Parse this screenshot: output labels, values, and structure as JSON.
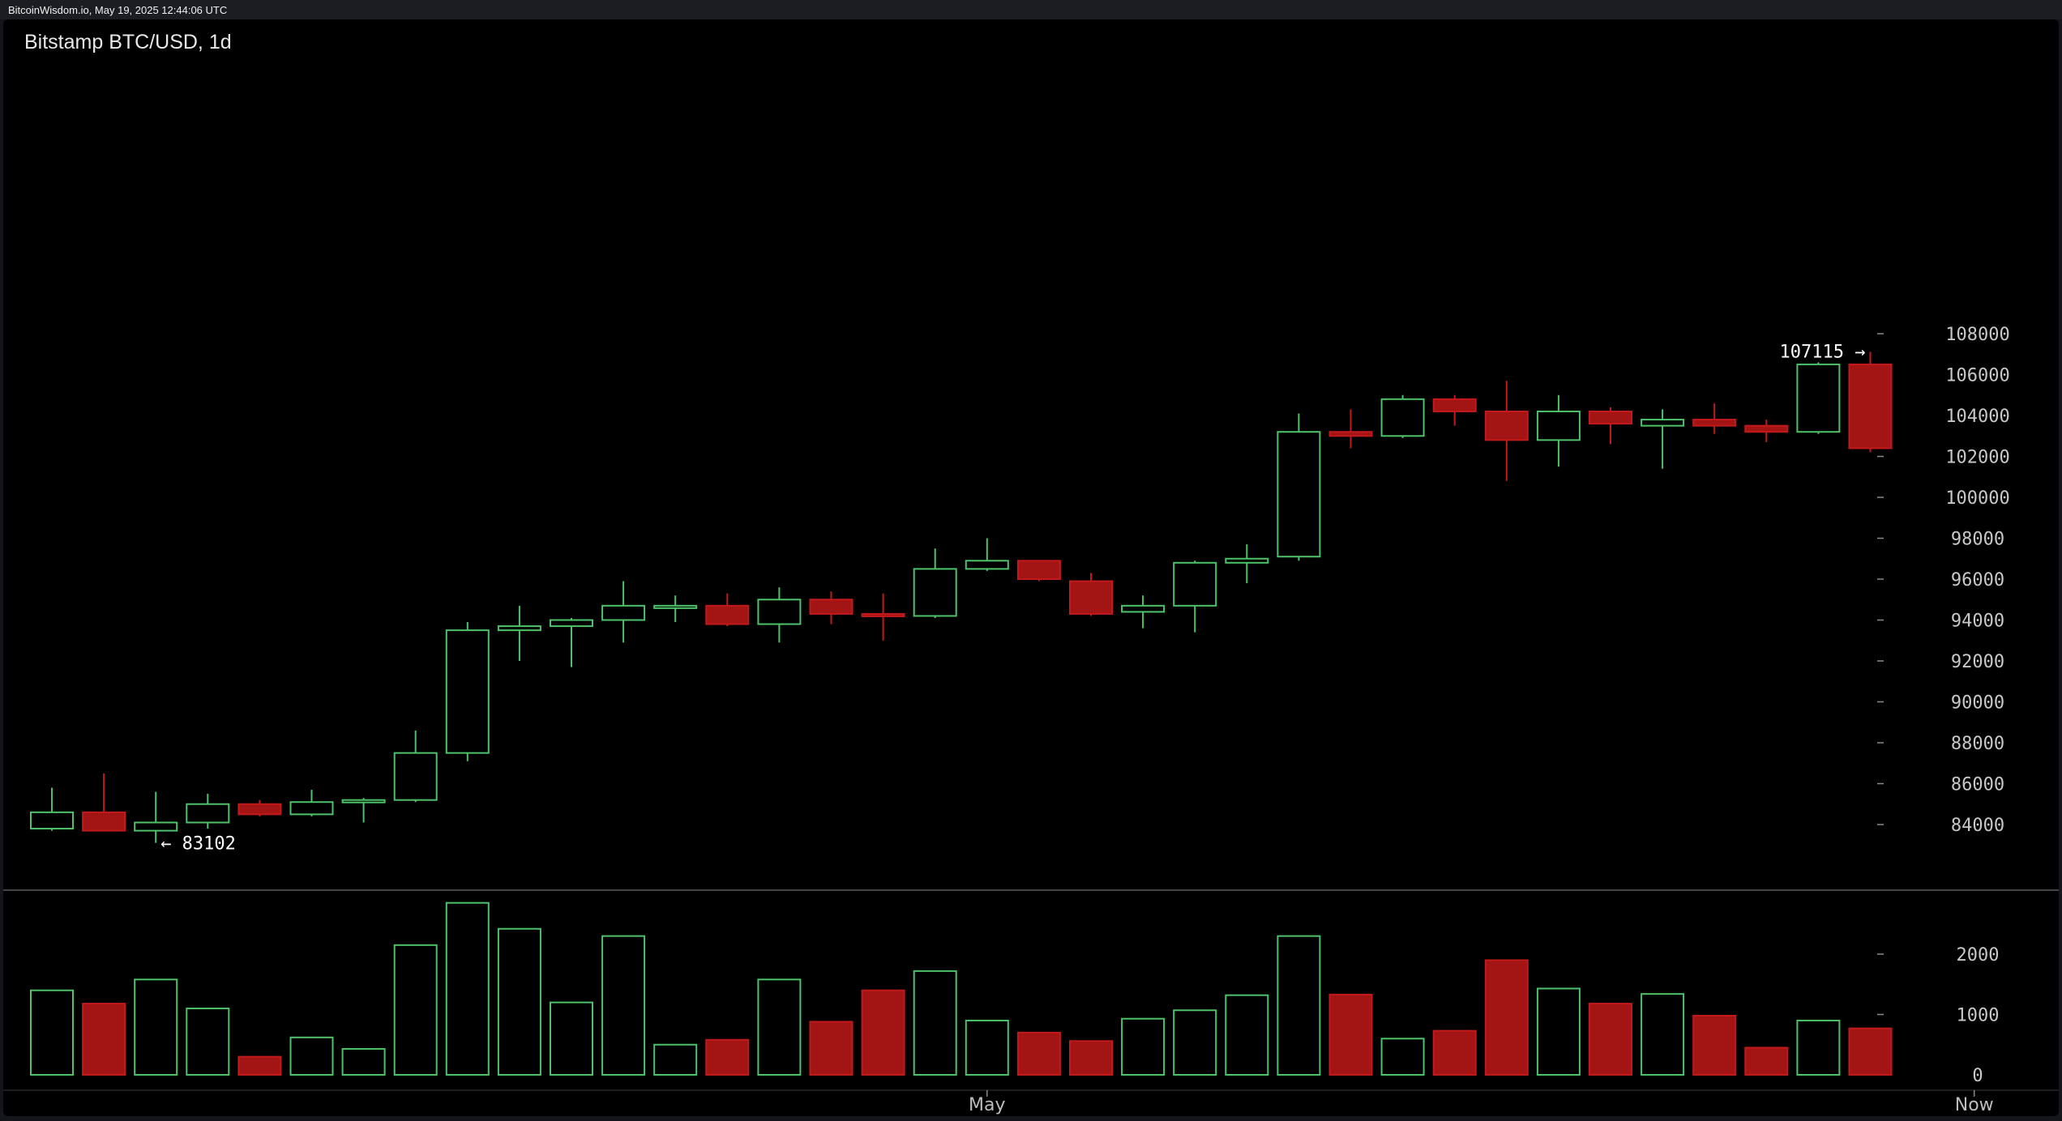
{
  "header": {
    "meta": "BitcoinWisdom.io, May 19, 2025 12:44:06 UTC"
  },
  "chart_data": {
    "type": "candlestick",
    "title": "Bitstamp BTC/USD, 1d",
    "price_axis": {
      "ticks": [
        84000,
        86000,
        88000,
        90000,
        92000,
        94000,
        96000,
        98000,
        100000,
        102000,
        104000,
        106000,
        108000
      ],
      "ylim": [
        82000,
        109000
      ]
    },
    "volume_axis": {
      "ticks": [
        0,
        1000,
        2000
      ],
      "ylim": [
        0,
        2900
      ]
    },
    "x_labels": [
      {
        "label": "May",
        "candle_index": 18
      },
      {
        "label": "Now",
        "candle_index": 37
      }
    ],
    "annotations": {
      "low": {
        "text": "← 83102",
        "value": 83102,
        "candle_index": 2
      },
      "high": {
        "text": "107115 →",
        "value": 107115,
        "candle_index": 35
      }
    },
    "candles": [
      {
        "o": 83800,
        "h": 85800,
        "l": 83700,
        "c": 84600,
        "v": 1400
      },
      {
        "o": 84600,
        "h": 86500,
        "l": 83700,
        "c": 83700,
        "v": 1180
      },
      {
        "o": 83700,
        "h": 85600,
        "l": 83102,
        "c": 84100,
        "v": 1580
      },
      {
        "o": 84100,
        "h": 85500,
        "l": 83800,
        "c": 85000,
        "v": 1100
      },
      {
        "o": 85000,
        "h": 85200,
        "l": 84400,
        "c": 84500,
        "v": 300
      },
      {
        "o": 84500,
        "h": 85700,
        "l": 84400,
        "c": 85100,
        "v": 620
      },
      {
        "o": 85100,
        "h": 85300,
        "l": 84100,
        "c": 85200,
        "v": 430
      },
      {
        "o": 85200,
        "h": 88600,
        "l": 85100,
        "c": 87500,
        "v": 2150
      },
      {
        "o": 87500,
        "h": 93900,
        "l": 87100,
        "c": 93500,
        "v": 2850
      },
      {
        "o": 93500,
        "h": 94700,
        "l": 92000,
        "c": 93700,
        "v": 2420
      },
      {
        "o": 93700,
        "h": 94100,
        "l": 91700,
        "c": 94000,
        "v": 1200
      },
      {
        "o": 94000,
        "h": 95900,
        "l": 92900,
        "c": 94700,
        "v": 2300
      },
      {
        "o": 94700,
        "h": 95200,
        "l": 93900,
        "c": 94700,
        "v": 500
      },
      {
        "o": 94700,
        "h": 95300,
        "l": 93700,
        "c": 93800,
        "v": 580
      },
      {
        "o": 93800,
        "h": 95600,
        "l": 92900,
        "c": 95000,
        "v": 1580
      },
      {
        "o": 95000,
        "h": 95400,
        "l": 93800,
        "c": 94300,
        "v": 880
      },
      {
        "o": 94300,
        "h": 95300,
        "l": 93000,
        "c": 94200,
        "v": 1400
      },
      {
        "o": 94200,
        "h": 97500,
        "l": 94100,
        "c": 96500,
        "v": 1720
      },
      {
        "o": 96500,
        "h": 98000,
        "l": 96400,
        "c": 96900,
        "v": 900
      },
      {
        "o": 96900,
        "h": 96900,
        "l": 95900,
        "c": 96000,
        "v": 700
      },
      {
        "o": 95900,
        "h": 96300,
        "l": 94200,
        "c": 94300,
        "v": 560
      },
      {
        "o": 94400,
        "h": 95200,
        "l": 93600,
        "c": 94700,
        "v": 930
      },
      {
        "o": 94700,
        "h": 96900,
        "l": 93400,
        "c": 96800,
        "v": 1070
      },
      {
        "o": 96800,
        "h": 97700,
        "l": 95800,
        "c": 97000,
        "v": 1320
      },
      {
        "o": 97100,
        "h": 104100,
        "l": 96900,
        "c": 103200,
        "v": 2300
      },
      {
        "o": 103200,
        "h": 104300,
        "l": 102400,
        "c": 103000,
        "v": 1330
      },
      {
        "o": 103000,
        "h": 105000,
        "l": 102900,
        "c": 104800,
        "v": 600
      },
      {
        "o": 104800,
        "h": 105000,
        "l": 103500,
        "c": 104200,
        "v": 730
      },
      {
        "o": 104200,
        "h": 105700,
        "l": 100800,
        "c": 102800,
        "v": 1900
      },
      {
        "o": 102800,
        "h": 105000,
        "l": 101500,
        "c": 104200,
        "v": 1430
      },
      {
        "o": 104200,
        "h": 104400,
        "l": 102600,
        "c": 103600,
        "v": 1180
      },
      {
        "o": 103500,
        "h": 104300,
        "l": 101400,
        "c": 103800,
        "v": 1340
      },
      {
        "o": 103800,
        "h": 104600,
        "l": 103100,
        "c": 103500,
        "v": 980
      },
      {
        "o": 103500,
        "h": 103800,
        "l": 102700,
        "c": 103200,
        "v": 450
      },
      {
        "o": 103200,
        "h": 106600,
        "l": 103100,
        "c": 106500,
        "v": 900
      },
      {
        "o": 106500,
        "h": 107115,
        "l": 102200,
        "c": 102400,
        "v": 770
      }
    ]
  }
}
